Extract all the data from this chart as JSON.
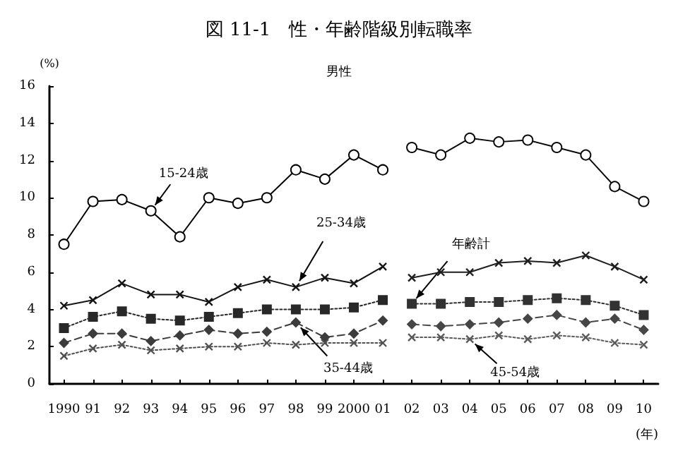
{
  "chart_data": {
    "type": "line",
    "title": "図 11-1　性・年齢階級別転職率",
    "subtitle": "男性",
    "ylabel": "(%)",
    "xlabel": "(年)",
    "categories": [
      "1990",
      "91",
      "92",
      "93",
      "94",
      "95",
      "96",
      "97",
      "98",
      "99",
      "2000",
      "01",
      "02",
      "03",
      "04",
      "05",
      "06",
      "07",
      "08",
      "09",
      "10"
    ],
    "series": [
      {
        "values": [
          7.5,
          9.8,
          9.9,
          9.3,
          7.9,
          10.0,
          9.7,
          10.0,
          11.5,
          11.0,
          12.3,
          11.5,
          null,
          null,
          null,
          null,
          null,
          null,
          null,
          null,
          null
        ],
        "color": "#000000",
        "marker": "circle",
        "line_style": "solid"
      },
      {
        "values": [
          null,
          null,
          null,
          null,
          null,
          null,
          null,
          null,
          null,
          null,
          null,
          null,
          12.7,
          12.3,
          13.2,
          13.0,
          13.1,
          12.7,
          12.3,
          10.6,
          9.8
        ],
        "color": "#0a0a0a",
        "marker": "circle",
        "line_style": "solid"
      },
      {
        "values": [
          4.2,
          4.5,
          5.4,
          4.8,
          4.8,
          4.4,
          5.2,
          5.6,
          5.2,
          5.7,
          5.4,
          6.3,
          null,
          null,
          null,
          null,
          null,
          null,
          null,
          null,
          null
        ],
        "color": "#141414",
        "marker": "cross",
        "line_style": "solid"
      },
      {
        "values": [
          null,
          null,
          null,
          null,
          null,
          null,
          null,
          null,
          null,
          null,
          null,
          null,
          5.7,
          6.0,
          6.0,
          6.5,
          6.6,
          6.5,
          6.9,
          6.3,
          5.6
        ],
        "color": "#1e1e1e",
        "marker": "cross",
        "line_style": "solid"
      },
      {
        "values": [
          3.0,
          3.6,
          3.9,
          3.5,
          3.4,
          3.6,
          3.8,
          4.0,
          4.0,
          4.0,
          4.1,
          4.5,
          null,
          null,
          null,
          null,
          null,
          null,
          null,
          null,
          null
        ],
        "color": "#282828",
        "marker": "square",
        "line_style": "dotted"
      },
      {
        "values": [
          null,
          null,
          null,
          null,
          null,
          null,
          null,
          null,
          null,
          null,
          null,
          null,
          4.3,
          4.3,
          4.4,
          4.4,
          4.5,
          4.6,
          4.5,
          4.2,
          3.7
        ],
        "color": "#323232",
        "marker": "square",
        "line_style": "dotted"
      },
      {
        "values": [
          2.2,
          2.7,
          2.7,
          2.3,
          2.6,
          2.9,
          2.7,
          2.8,
          3.3,
          2.5,
          2.7,
          3.4,
          null,
          null,
          null,
          null,
          null,
          null,
          null,
          null,
          null
        ],
        "color": "#3c3c3c",
        "marker": "diamond",
        "line_style": "dashed"
      },
      {
        "values": [
          null,
          null,
          null,
          null,
          null,
          null,
          null,
          null,
          null,
          null,
          null,
          null,
          3.2,
          3.1,
          3.2,
          3.3,
          3.5,
          3.7,
          3.3,
          3.5,
          2.9
        ],
        "color": "#464646",
        "marker": "diamond",
        "line_style": "dashed"
      },
      {
        "values": [
          1.5,
          1.9,
          2.1,
          1.8,
          1.9,
          2.0,
          2.0,
          2.2,
          2.1,
          2.2,
          2.2,
          2.2,
          null,
          null,
          null,
          null,
          null,
          null,
          null,
          null,
          null
        ],
        "color": "#505050",
        "marker": "cross",
        "line_style": "dotted"
      },
      {
        "values": [
          null,
          null,
          null,
          null,
          null,
          null,
          null,
          null,
          null,
          null,
          null,
          null,
          2.5,
          2.5,
          2.4,
          2.6,
          2.4,
          2.6,
          2.5,
          2.2,
          2.1
        ],
        "color": "#5a5a5a",
        "marker": "cross",
        "line_style": "dotted"
      }
    ],
    "annotations": [
      {
        "text": "15-24歳",
        "x": "93",
        "y": 9.3
      },
      {
        "text": "25-34歳",
        "x": "98",
        "y": 5.2
      },
      {
        "text": "35-44歳",
        "x": "98",
        "y": 3.3
      },
      {
        "text": "年齢計",
        "x": "02",
        "y": 4.3
      },
      {
        "text": "45-54歳",
        "x": "04",
        "y": 2.4
      }
    ],
    "ylim": [
      0,
      16
    ],
    "yticks": [
      0,
      2,
      4,
      6,
      8,
      10,
      12,
      14,
      16
    ],
    "grid": false
  }
}
